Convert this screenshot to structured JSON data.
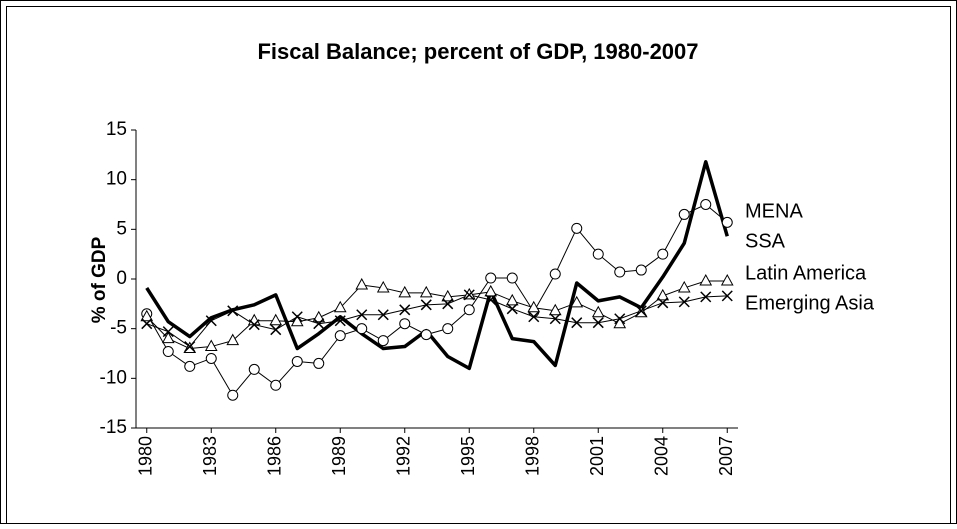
{
  "chart_data": {
    "type": "line",
    "title": "Fiscal Balance; percent of GDP, 1980-2007",
    "y_label": "% of GDP",
    "x": [
      1980,
      1981,
      1982,
      1983,
      1984,
      1985,
      1986,
      1987,
      1988,
      1989,
      1990,
      1991,
      1992,
      1993,
      1994,
      1995,
      1996,
      1997,
      1998,
      1999,
      2000,
      2001,
      2002,
      2003,
      2004,
      2005,
      2006,
      2007
    ],
    "xlim": [
      1979.5,
      2007.5
    ],
    "xticks": [
      1980,
      1983,
      1986,
      1989,
      1992,
      1995,
      1998,
      2001,
      2004,
      2007
    ],
    "ylim": [
      -15,
      15
    ],
    "yticks": [
      -15,
      -10,
      -5,
      0,
      5,
      10,
      15
    ],
    "series": [
      {
        "name": "MENA",
        "color": "#000000",
        "marker": "none",
        "line_width": 3.5,
        "values": [
          -0.9,
          -4.3,
          -5.8,
          -3.9,
          -3.1,
          -2.6,
          -1.6,
          -7.0,
          -5.5,
          -3.8,
          -5.5,
          -7.0,
          -6.8,
          -5.2,
          -7.8,
          -9.0,
          -1.2,
          -6.0,
          -6.3,
          -8.7,
          -0.4,
          -2.2,
          -1.8,
          -2.9,
          0.2,
          3.6,
          11.8,
          4.3
        ]
      },
      {
        "name": "SSA",
        "color": "#000000",
        "marker": "circle",
        "line_width": 1,
        "values": [
          -3.5,
          -7.3,
          -8.8,
          -8.0,
          -11.7,
          -9.1,
          -10.7,
          -8.3,
          -8.5,
          -5.7,
          -5.0,
          -6.2,
          -4.5,
          -5.6,
          -5.0,
          -3.1,
          0.1,
          0.1,
          -3.3,
          0.5,
          5.1,
          2.5,
          0.7,
          0.9,
          2.5,
          6.5,
          7.5,
          5.7
        ]
      },
      {
        "name": "Latin America",
        "color": "#000000",
        "marker": "triangle",
        "line_width": 1,
        "values": [
          -3.8,
          -6.0,
          -7.0,
          -6.8,
          -6.2,
          -4.2,
          -4.2,
          -4.3,
          -3.9,
          -2.9,
          -0.6,
          -0.9,
          -1.4,
          -1.4,
          -1.8,
          -1.6,
          -1.3,
          -2.2,
          -2.9,
          -3.2,
          -2.4,
          -3.4,
          -4.5,
          -3.4,
          -1.7,
          -0.9,
          -0.2,
          -0.2
        ]
      },
      {
        "name": "Emerging Asia",
        "color": "#000000",
        "marker": "x",
        "line_width": 1,
        "values": [
          -4.5,
          -5.3,
          -6.8,
          -4.2,
          -3.2,
          -4.6,
          -5.1,
          -3.8,
          -4.5,
          -4.2,
          -3.6,
          -3.6,
          -3.1,
          -2.6,
          -2.5,
          -1.6,
          -2.1,
          -3.0,
          -3.8,
          -4.0,
          -4.4,
          -4.4,
          -4.0,
          -3.2,
          -2.4,
          -2.3,
          -1.8,
          -1.7
        ]
      }
    ]
  }
}
